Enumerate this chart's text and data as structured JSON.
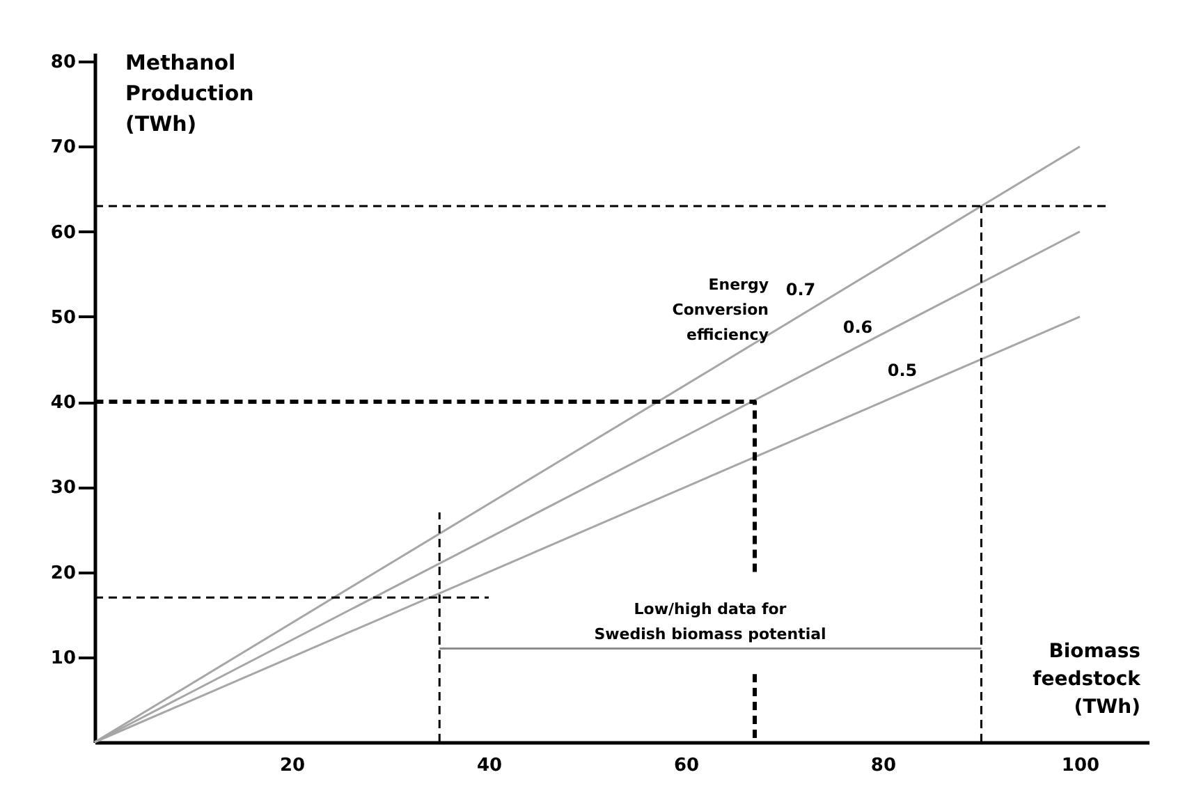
{
  "chart_data": {
    "type": "line",
    "xlabel": "Biomass\nfeedstock\n(TWh)",
    "ylabel": "Methanol\nProduction\n(TWh)",
    "xlim": [
      0,
      107
    ],
    "xticks": [
      20,
      40,
      60,
      80,
      100
    ],
    "ylim": [
      0,
      81
    ],
    "yticks": [
      10,
      20,
      30,
      40,
      50,
      60,
      70,
      80
    ],
    "grid": false,
    "series": [
      {
        "name": "0.7",
        "color": "#a6a6a6",
        "x": [
          0,
          100
        ],
        "values": [
          0,
          70
        ]
      },
      {
        "name": "0.6",
        "color": "#a6a6a6",
        "x": [
          0,
          100
        ],
        "values": [
          0,
          60
        ]
      },
      {
        "name": "0.5",
        "color": "#a6a6a6",
        "x": [
          0,
          100
        ],
        "values": [
          0,
          50
        ]
      },
      {
        "color": "#000000",
        "x": [
          0,
          103
        ],
        "values": [
          63,
          63
        ],
        "line_style": "dashed"
      },
      {
        "color": "#000000",
        "x": [
          0,
          40
        ],
        "values": [
          17,
          17
        ],
        "line_style": "dashed"
      },
      {
        "color": "#000000",
        "x": [
          35,
          35
        ],
        "values": [
          0,
          27
        ],
        "line_style": "dashed"
      },
      {
        "color": "#000000",
        "x": [
          90,
          90
        ],
        "values": [
          0,
          63
        ],
        "line_style": "dashed"
      },
      {
        "color": "#000000",
        "x": [
          67,
          67,
          0
        ],
        "values": [
          20,
          40,
          40
        ],
        "line_style": "dashed"
      },
      {
        "color": "#000000",
        "x": [
          67,
          67
        ],
        "values": [
          0.5,
          8
        ],
        "line_style": "dashed"
      },
      {
        "color": "#8c8c8c",
        "x": [
          35,
          90
        ],
        "values": [
          11,
          11
        ]
      }
    ],
    "annotations": [
      "Energy\nConversion\nefficiency",
      "Low/high data for\nSwedish biomass potential"
    ]
  }
}
